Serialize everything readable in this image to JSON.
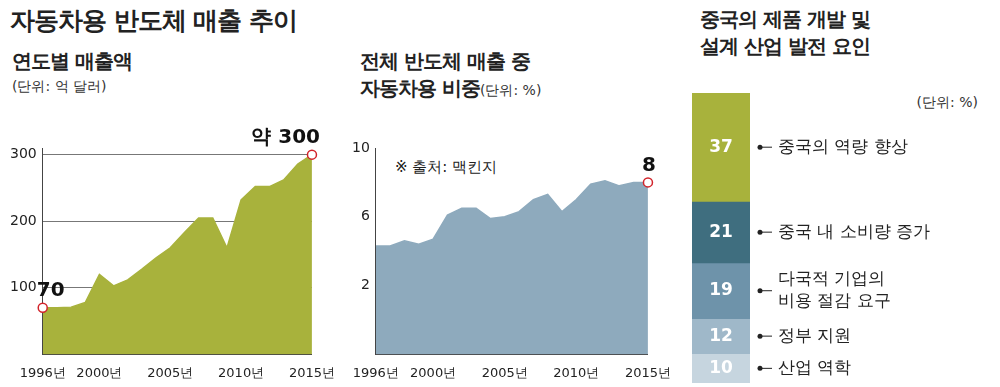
{
  "title": "자동차용 반도체 매출 추이",
  "chart_data": [
    {
      "type": "area",
      "title": "연도별 매출액",
      "subtitle": "(단위: 억 달러)",
      "x": [
        1996,
        1997,
        1998,
        1999,
        2000,
        2001,
        2002,
        2003,
        2004,
        2005,
        2006,
        2007,
        2008,
        2009,
        2010,
        2011,
        2012,
        2013,
        2014,
        2015
      ],
      "values": [
        70,
        70,
        71,
        78,
        120,
        103,
        112,
        128,
        145,
        160,
        183,
        205,
        205,
        160,
        232,
        252,
        252,
        262,
        286,
        300
      ],
      "value_labels": [
        "70",
        null,
        null,
        null,
        null,
        null,
        null,
        null,
        null,
        null,
        null,
        null,
        null,
        null,
        null,
        null,
        null,
        null,
        null,
        "약 300"
      ],
      "color": "#a8b23c",
      "xlim": [
        1996,
        2015
      ],
      "xticks": [
        {
          "value": 1996,
          "label": "1996년"
        },
        {
          "value": 2000,
          "label": "2000년"
        },
        {
          "value": 2005,
          "label": "2005년"
        },
        {
          "value": 2010,
          "label": "2010년"
        },
        {
          "value": 2015,
          "label": "2015년"
        }
      ],
      "ylim": [
        0,
        310
      ],
      "yticks": [
        100,
        200,
        300
      ],
      "grid": true
    },
    {
      "type": "area",
      "title": "전체 반도체 매출 중\n자동차용 비중",
      "subtitle": "(단위: %)",
      "source": "※ 출처: 맥킨지",
      "x": [
        1996,
        1997,
        1998,
        1999,
        2000,
        2001,
        2002,
        2003,
        2004,
        2005,
        2006,
        2007,
        2008,
        2009,
        2010,
        2011,
        2012,
        2013,
        2014,
        2015
      ],
      "values": [
        4.3,
        4.3,
        4.6,
        4.4,
        4.7,
        6.1,
        6.5,
        6.5,
        5.9,
        6.0,
        6.3,
        7.0,
        7.3,
        6.3,
        7.0,
        7.9,
        8.1,
        7.8,
        8.0,
        8.0
      ],
      "value_labels": [
        null,
        null,
        null,
        null,
        null,
        null,
        null,
        null,
        null,
        null,
        null,
        null,
        null,
        null,
        null,
        null,
        null,
        null,
        null,
        "8"
      ],
      "color": "#8eaabd",
      "xlim": [
        1996,
        2015
      ],
      "xticks": [
        {
          "value": 1996,
          "label": "1996년"
        },
        {
          "value": 2000,
          "label": "2000년"
        },
        {
          "value": 2005,
          "label": "2005년"
        },
        {
          "value": 2010,
          "label": "2010년"
        },
        {
          "value": 2015,
          "label": "2015년"
        }
      ],
      "ylim": [
        -2,
        10
      ],
      "yticks": [
        2,
        6,
        10
      ],
      "grid": false
    },
    {
      "type": "bar",
      "title": "중국의 제품 개발 및\n설계 산업 발전 요인",
      "subtitle": "(단위: %)",
      "stacked": true,
      "data_labels": true,
      "tick_labels": false,
      "ylim": [
        0,
        99
      ],
      "series": [
        {
          "name": "중국의 역량 향상",
          "color": "#a8b23c",
          "values": [
            37
          ]
        },
        {
          "name": "중국 내 소비량 증가",
          "color": "#3f6e7f",
          "values": [
            21
          ]
        },
        {
          "name": "다국적 기업의\n비용 절감 요구",
          "color": "#6e93aa",
          "values": [
            19
          ]
        },
        {
          "name": "정부 지원",
          "color": "#9fb8c9",
          "values": [
            12
          ]
        },
        {
          "name": "산업 역학",
          "color": "#c6d5df",
          "values": [
            10
          ]
        }
      ]
    }
  ]
}
